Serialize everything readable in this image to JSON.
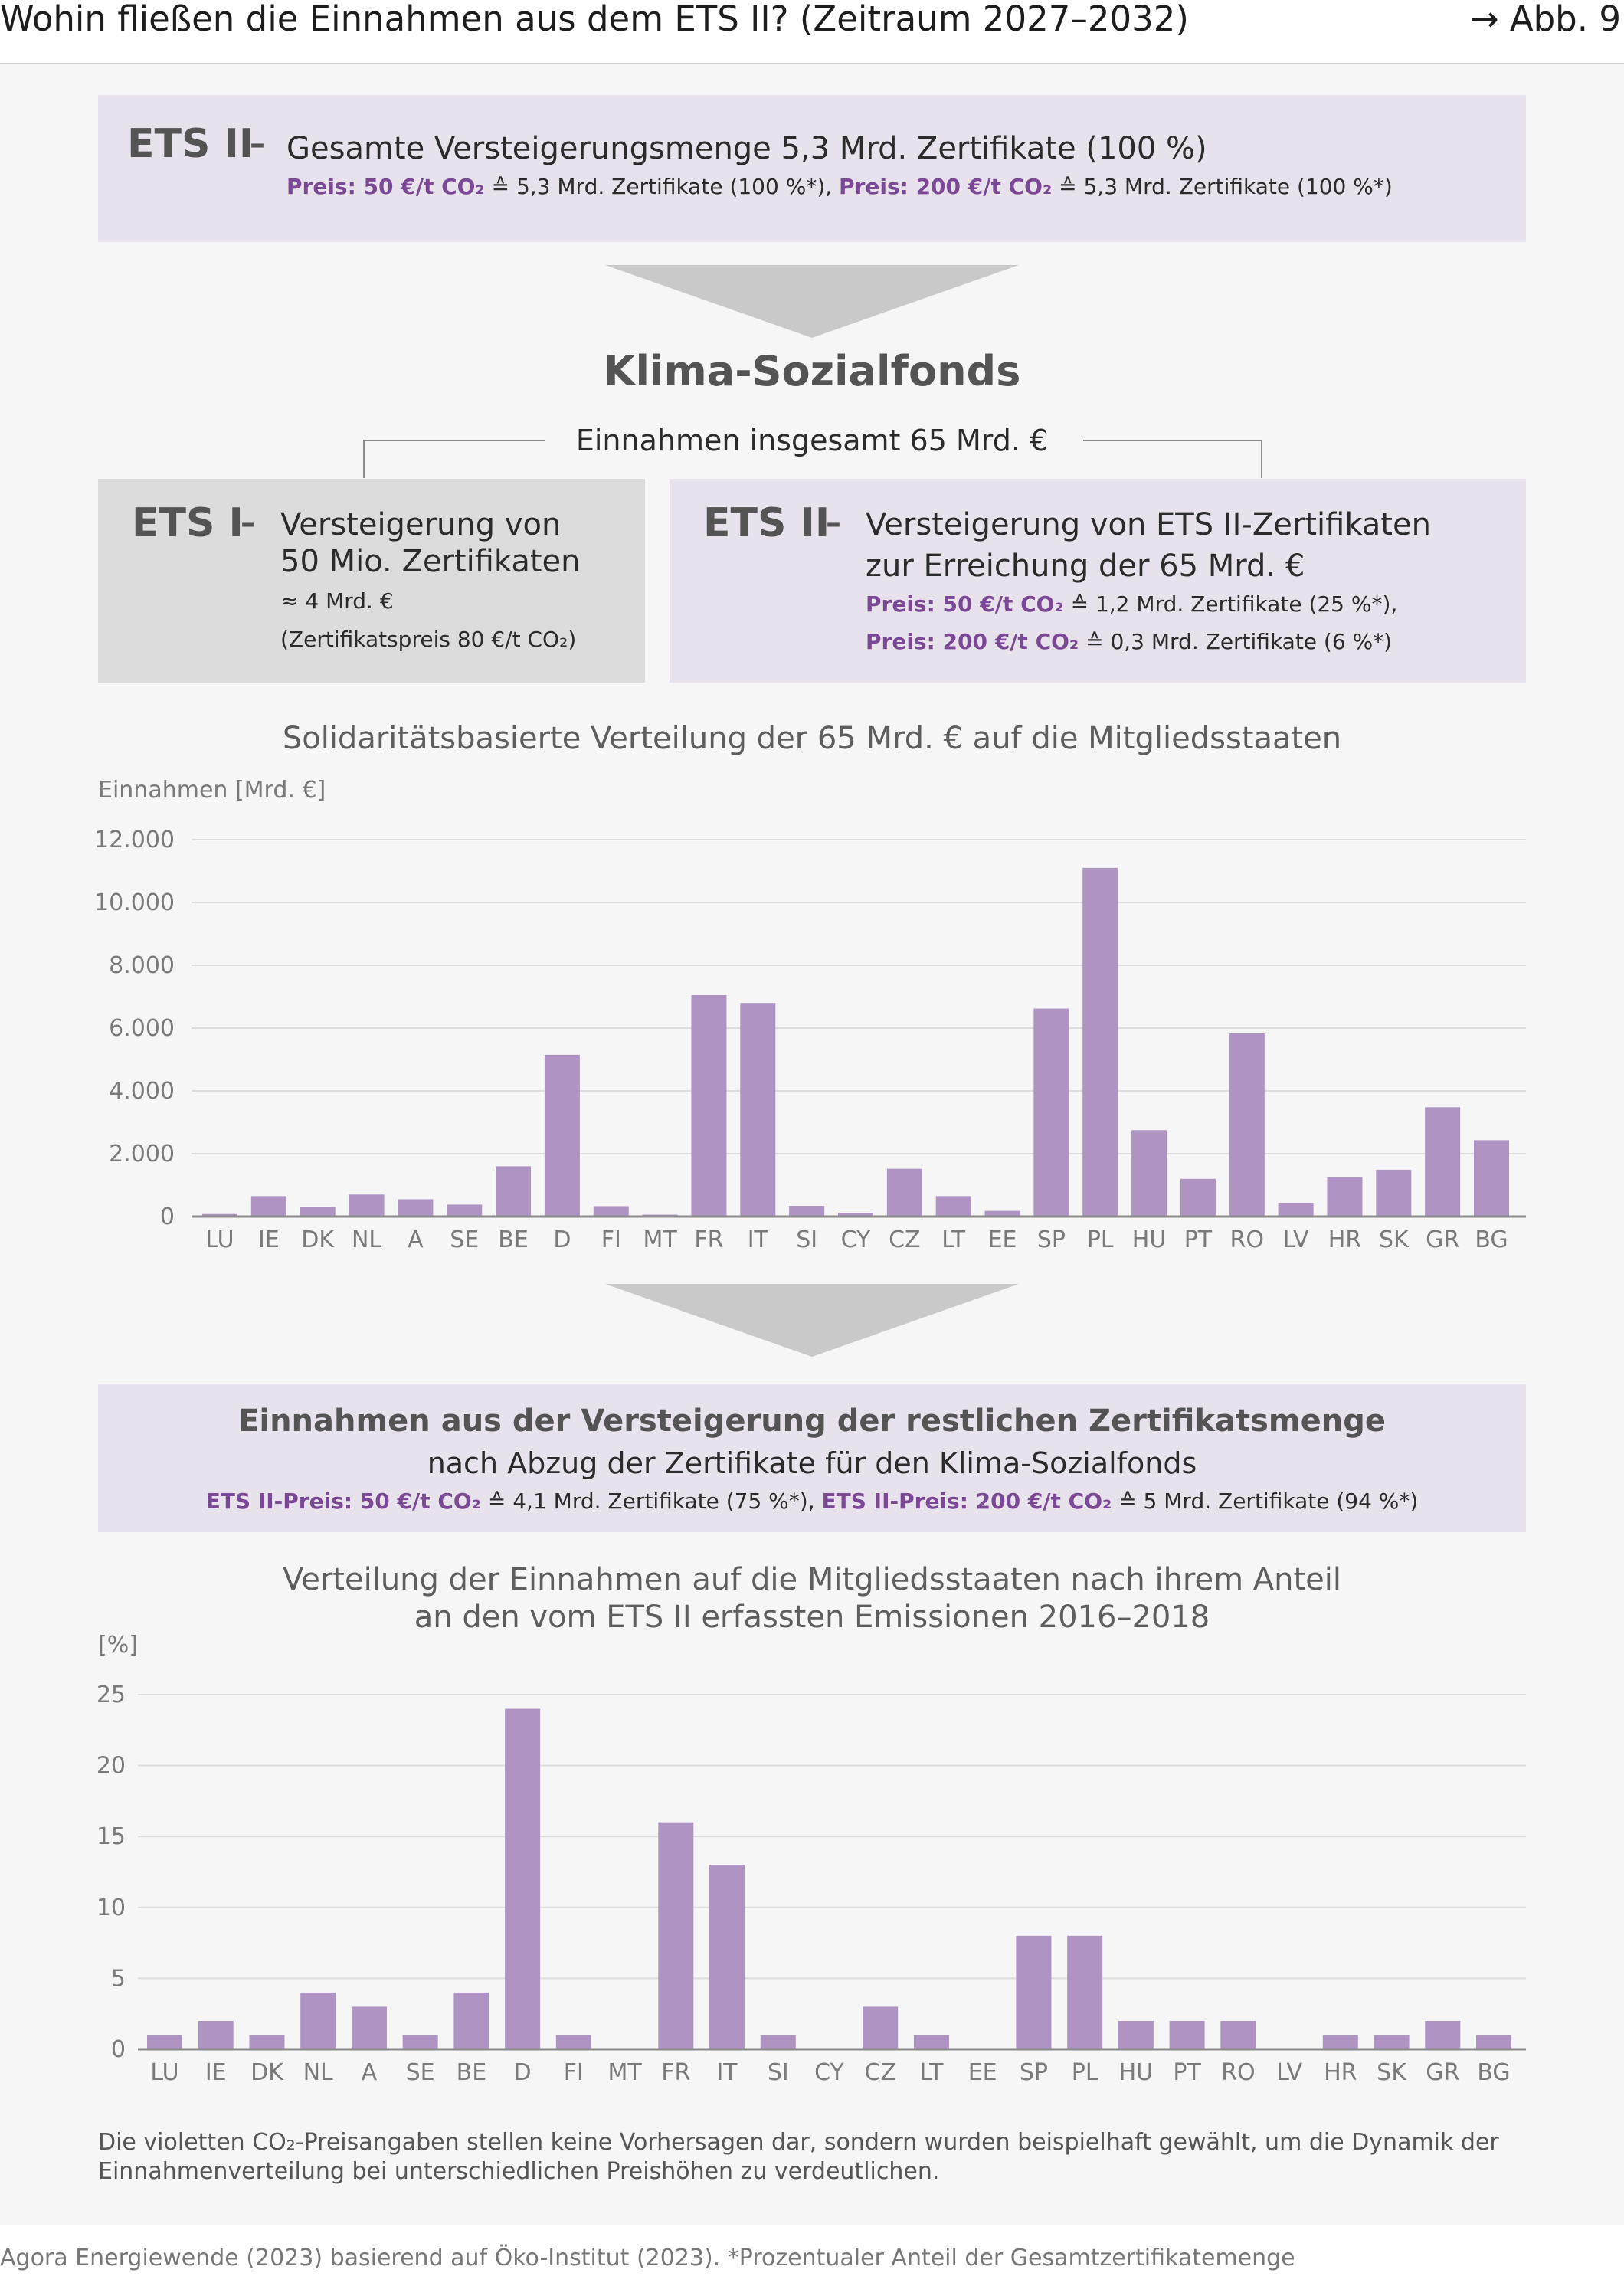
{
  "header": {
    "title": "Wohin fließen die Einnahmen aus dem ETS II? (Zeitraum 2027–2032)",
    "figure_ref": "→ Abb. 9"
  },
  "top_box": {
    "label": "ETS II",
    "dash": "–",
    "heading": "Gesamte Versteigerungsmenge 5,3 Mrd. Zertifikate (100 %)",
    "price1_label": "Preis: 50 €/t CO₂",
    "price1_text": " ≙ 5,3 Mrd. Zertifikate (100 %*), ",
    "price2_label": "Preis: 200 €/t CO₂",
    "price2_text": " ≙ 5,3 Mrd. Zertifikate (100 %*)"
  },
  "fund": {
    "title": "Klima-Sozialfonds",
    "total": "Einnahmen insgesamt 65 Mrd. €"
  },
  "ets1_box": {
    "label": "ETS I",
    "dash": "–",
    "line1": "Versteigerung von",
    "line2": "50 Mio. Zertifikaten",
    "line3": "≈ 4 Mrd. €",
    "line4": "(Zertifikatspreis 80 €/t CO₂)"
  },
  "ets2_box": {
    "label": "ETS II",
    "dash": "–",
    "line1": "Versteigerung von ETS II-Zertifikaten",
    "line2": "zur Erreichung der 65 Mrd. €",
    "price1_label": "Preis: 50 €/t CO₂",
    "price1_text": " ≙ 1,2 Mrd. Zertifikate (25 %*),",
    "price2_label": "Preis: 200 €/t CO₂",
    "price2_text": " ≙ 0,3 Mrd. Zertifikate (6 %*)"
  },
  "remaining_box": {
    "line1": "Einnahmen aus der Versteigerung der restlichen Zertifikatsmenge",
    "line2": "nach Abzug der Zertifikate für den Klima-Sozialfonds",
    "price1_label": "ETS II-Preis: 50 €/t CO₂",
    "price1_text": " ≙ 4,1 Mrd. Zertifikate (75 %*), ",
    "price2_label": "ETS II-Preis: 200 €/t CO₂",
    "price2_text": " ≙ 5 Mrd. Zertifikate (94 %*)"
  },
  "colors": {
    "bar": "#ae93c3",
    "purple_text": "#7b4895",
    "grid": "#dddddd",
    "axis": "#8c8c8c"
  },
  "chart_data": [
    {
      "type": "bar",
      "title": "Solidaritätsbasierte Verteilung der 65 Mrd. € auf die Mitgliedsstaaten",
      "ylabel": "Einnahmen [Mrd. €]",
      "xlabel": "",
      "ylim": [
        0,
        12000
      ],
      "yticks": [
        0,
        2000,
        4000,
        6000,
        8000,
        10000,
        12000
      ],
      "ytick_labels": [
        "0",
        "2.000",
        "4.000",
        "6.000",
        "8.000",
        "10.000",
        "12.000"
      ],
      "grid": true,
      "categories": [
        "LU",
        "IE",
        "DK",
        "NL",
        "A",
        "SE",
        "BE",
        "D",
        "FI",
        "MT",
        "FR",
        "IT",
        "SI",
        "CY",
        "CZ",
        "LT",
        "EE",
        "SP",
        "PL",
        "HU",
        "PT",
        "RO",
        "LV",
        "HR",
        "SK",
        "GR",
        "BG"
      ],
      "values": [
        80,
        650,
        300,
        700,
        550,
        380,
        1600,
        5150,
        330,
        60,
        7050,
        6800,
        340,
        120,
        1520,
        650,
        180,
        6620,
        11100,
        2750,
        1200,
        5830,
        440,
        1250,
        1490,
        3480,
        2430
      ]
    },
    {
      "type": "bar",
      "title": "Verteilung der Einnahmen auf die Mitgliedsstaaten nach ihrem Anteil an den vom ETS II erfassten Emissionen 2016–2018",
      "title_line1": "Verteilung der Einnahmen auf die Mitgliedsstaaten nach ihrem Anteil",
      "title_line2": "an den vom ETS II erfassten Emissionen 2016–2018",
      "ylabel": "[%]",
      "xlabel": "",
      "ylim": [
        0,
        25
      ],
      "yticks": [
        0,
        5,
        10,
        15,
        20,
        25
      ],
      "ytick_labels": [
        "0",
        "5",
        "10",
        "15",
        "20",
        "25"
      ],
      "grid": true,
      "categories": [
        "LU",
        "IE",
        "DK",
        "NL",
        "A",
        "SE",
        "BE",
        "D",
        "FI",
        "MT",
        "FR",
        "IT",
        "SI",
        "CY",
        "CZ",
        "LT",
        "EE",
        "SP",
        "PL",
        "HU",
        "PT",
        "RO",
        "LV",
        "HR",
        "SK",
        "GR",
        "BG"
      ],
      "values": [
        1,
        2,
        1,
        4,
        3,
        1,
        4,
        24,
        1,
        0,
        16,
        13,
        1,
        0,
        3,
        1,
        0,
        8,
        8,
        2,
        2,
        2,
        0,
        1,
        1,
        2,
        1
      ]
    }
  ],
  "footnote": "Die violetten CO₂-Preisangaben stellen keine Vorhersagen dar, sondern wurden beispielhaft gewählt, um die Dynamik der Einnahmenverteilung bei unterschiedlichen Preishöhen zu verdeutlichen.",
  "source": "Agora Energiewende (2023) basierend auf Öko-Institut (2023). *Prozentualer Anteil der Gesamtzertifikatemenge"
}
